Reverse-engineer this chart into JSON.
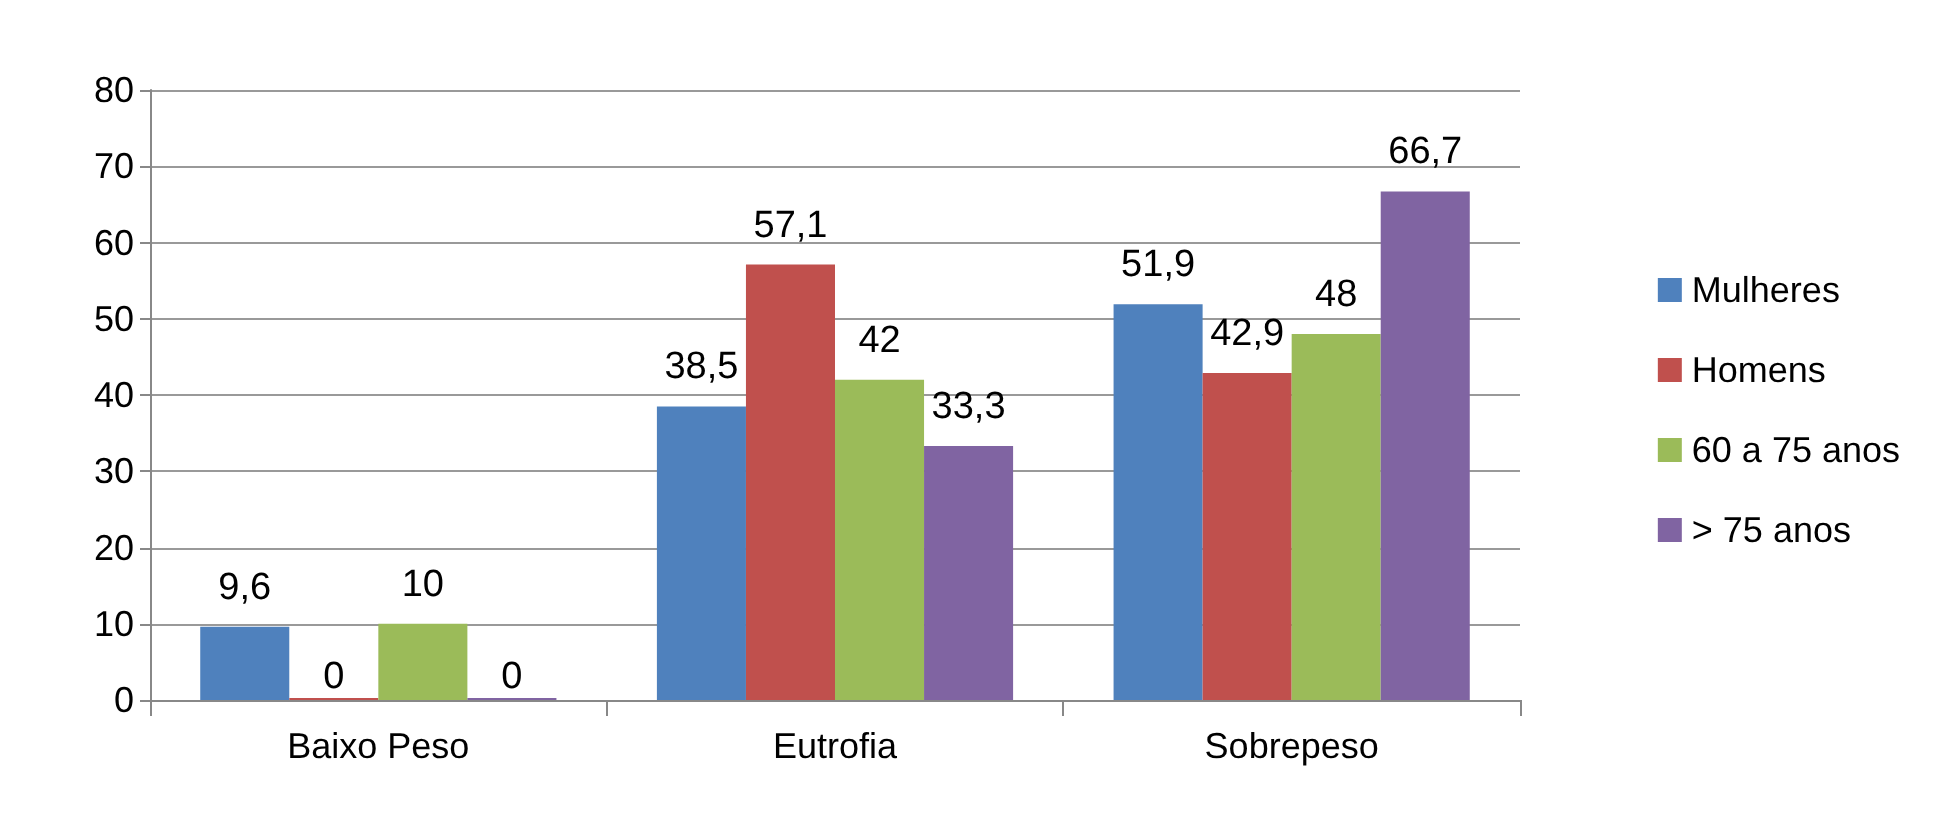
{
  "chart_data": {
    "type": "bar",
    "categories": [
      "Baixo Peso",
      "Eutrofia",
      "Sobrepeso"
    ],
    "series": [
      {
        "name": "Mulheres",
        "color": "#4f81bd",
        "values": [
          9.6,
          38.5,
          51.9
        ],
        "value_labels": [
          "9,6",
          "38,5",
          "51,9"
        ]
      },
      {
        "name": "Homens",
        "color": "#c0504d",
        "values": [
          0,
          57.1,
          42.9
        ],
        "value_labels": [
          "0",
          "57,1",
          "42,9"
        ]
      },
      {
        "name": "60 a 75 anos",
        "color": "#9bbb59",
        "values": [
          10,
          42,
          48
        ],
        "value_labels": [
          "10",
          "42",
          "48"
        ]
      },
      {
        "name": "> 75 anos",
        "color": "#8064a2",
        "values": [
          0,
          33.3,
          66.7
        ],
        "value_labels": [
          "0",
          "33,3",
          "66,7"
        ]
      }
    ],
    "ylim": [
      0,
      80
    ],
    "yticks": [
      0,
      10,
      20,
      30,
      40,
      50,
      60,
      70,
      80
    ],
    "grid": "y",
    "legend": "right"
  }
}
